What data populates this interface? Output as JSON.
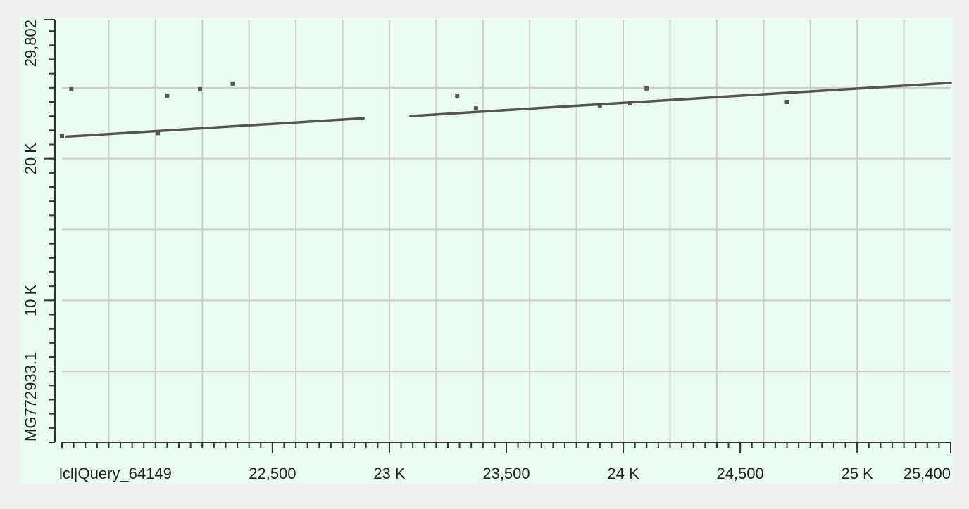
{
  "chart_data": {
    "type": "scatter",
    "title": "",
    "xlabel": "lcl|Query_64149",
    "ylabel": "MG772933.1",
    "xlim": [
      21600,
      25400
    ],
    "ylim": [
      0,
      29802
    ],
    "grid": true,
    "x_ticks": [
      {
        "value": 22500,
        "label": "22,500"
      },
      {
        "value": 23000,
        "label": "23 K"
      },
      {
        "value": 23500,
        "label": "23,500"
      },
      {
        "value": 24000,
        "label": "24 K"
      },
      {
        "value": 24500,
        "label": "24,500"
      },
      {
        "value": 25000,
        "label": "25 K"
      },
      {
        "value": 25400,
        "label": "25,400"
      }
    ],
    "y_ticks": [
      {
        "value": 10000,
        "label": "10 K"
      },
      {
        "value": 20000,
        "label": "20 K"
      },
      {
        "value": 29802,
        "label": "29,802"
      }
    ],
    "x_gridlines": [
      21800,
      22000,
      22200,
      22400,
      22600,
      22800,
      23000,
      23200,
      23400,
      23600,
      23800,
      24000,
      24200,
      24400,
      24600,
      24800,
      25000,
      25200
    ],
    "y_gridlines": [
      5000,
      10000,
      15000,
      20000,
      25000
    ],
    "x_minor_step": 50,
    "y_minor_step": 1000,
    "series": [
      {
        "type": "line",
        "segments": [
          {
            "x": [
              21620,
              22890
            ],
            "y": [
              21550,
              22850
            ]
          },
          {
            "x": [
              23090,
              23620
            ],
            "y": [
              23000,
              23550
            ]
          },
          {
            "x": [
              23620,
              25400
            ],
            "y": [
              23550,
              25350
            ]
          }
        ]
      },
      {
        "type": "points",
        "x": [
          21600,
          21640,
          22010,
          22050,
          22190,
          22330,
          23290,
          23370,
          23900,
          24030,
          24100,
          24700
        ],
        "y": [
          21600,
          24900,
          21800,
          24450,
          24900,
          25300,
          24450,
          23550,
          23750,
          23900,
          24950,
          24000
        ]
      }
    ],
    "colors": {
      "plot_background": "#eafbf1",
      "outer_background": "#f0f0f0",
      "gridline": "#cccccc",
      "axis": "#333333",
      "data": "#555555"
    }
  }
}
